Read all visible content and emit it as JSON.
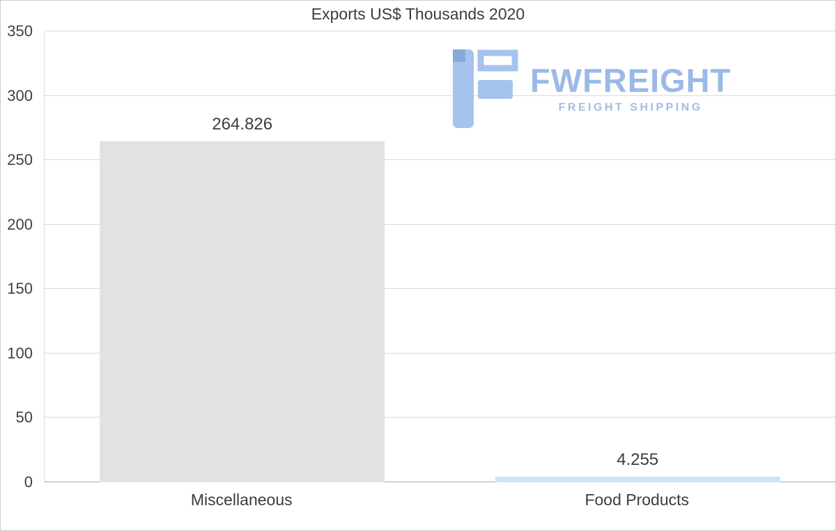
{
  "logo": {
    "name": "FWFREIGHT",
    "subtitle": "FREIGHT SHIPPING",
    "color": "#9bb9e8"
  },
  "chart_data": {
    "type": "bar",
    "title": "Exports US$ Thousands 2020",
    "categories": [
      "Miscellaneous",
      "Food Products"
    ],
    "values": [
      264.826,
      4.255
    ],
    "value_labels": [
      "264.826",
      "4.255"
    ],
    "bar_colors": [
      "#e2e2e2",
      "#cfe3f8"
    ],
    "xlabel": "",
    "ylabel": "",
    "ylim": [
      0,
      350
    ],
    "yticks": [
      0,
      50,
      100,
      150,
      200,
      250,
      300,
      350
    ],
    "grid": true,
    "legend": false,
    "gridline_color": "#d9d9d9",
    "baseline_color": "#a6a6a6",
    "text_color": "#3c3c3c"
  }
}
